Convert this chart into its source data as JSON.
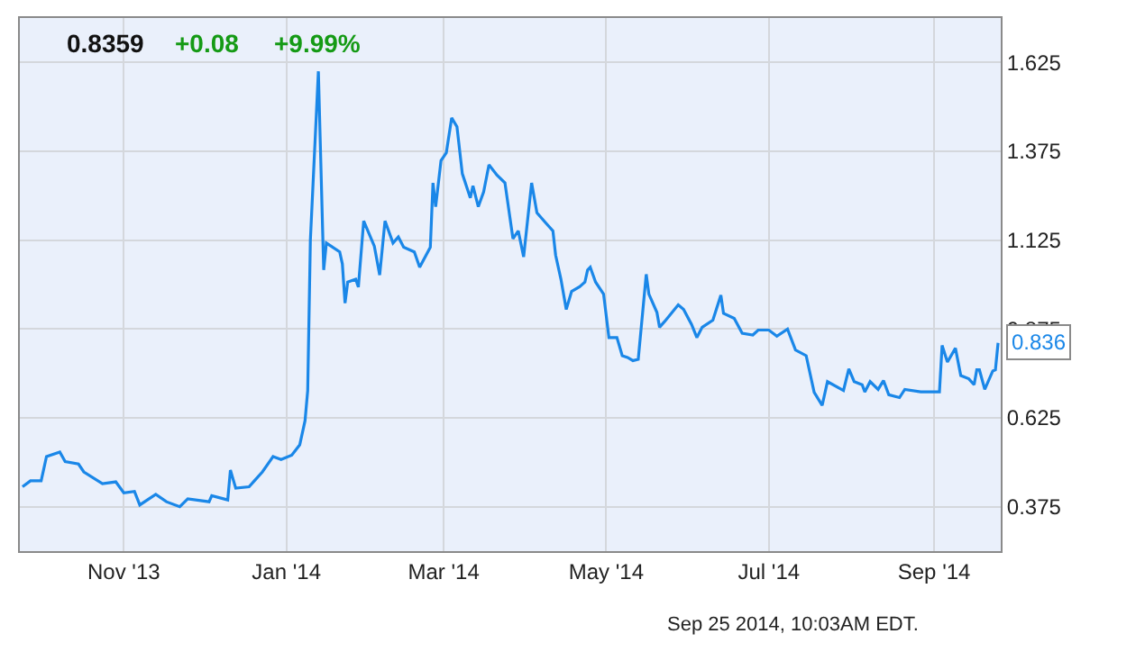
{
  "chart_data": {
    "type": "line",
    "annotations": [
      "0.8359",
      "+0.08",
      "+9.99%",
      "Sep 25 2014, 10:03AM EDT.",
      {
        "text": "0.836",
        "x": "2014-09-25",
        "y": 0.836
      }
    ],
    "x": [
      "2013-09-24",
      "2013-09-27",
      "2013-10-01",
      "2013-10-03",
      "2013-10-08",
      "2013-10-10",
      "2013-10-15",
      "2013-10-17",
      "2013-10-24",
      "2013-10-29",
      "2013-11-01",
      "2013-11-05",
      "2013-11-07",
      "2013-11-13",
      "2013-11-17",
      "2013-11-22",
      "2013-11-25",
      "2013-12-03",
      "2013-12-04",
      "2013-12-10",
      "2013-12-11",
      "2013-12-13",
      "2013-12-18",
      "2013-12-20",
      "2013-12-23",
      "2013-12-27",
      "2013-12-30",
      "2014-01-03",
      "2014-01-06",
      "2014-01-08",
      "2014-01-09",
      "2014-01-10",
      "2014-01-13",
      "2014-01-15",
      "2014-01-16",
      "2014-01-21",
      "2014-01-22",
      "2014-01-23",
      "2014-01-24",
      "2014-01-27",
      "2014-01-28",
      "2014-01-30",
      "2014-02-03",
      "2014-02-05",
      "2014-02-07",
      "2014-02-10",
      "2014-02-12",
      "2014-02-14",
      "2014-02-18",
      "2014-02-20",
      "2014-02-24",
      "2014-02-25",
      "2014-02-26",
      "2014-02-28",
      "2014-03-02",
      "2014-03-04",
      "2014-03-06",
      "2014-03-08",
      "2014-03-11",
      "2014-03-12",
      "2014-03-14",
      "2014-03-16",
      "2014-03-18",
      "2014-03-21",
      "2014-03-24",
      "2014-03-27",
      "2014-03-29",
      "2014-03-31",
      "2014-04-03",
      "2014-04-05",
      "2014-04-08",
      "2014-04-11",
      "2014-04-12",
      "2014-04-14",
      "2014-04-16",
      "2014-04-18",
      "2014-04-21",
      "2014-04-23",
      "2014-04-24",
      "2014-04-25",
      "2014-04-27",
      "2014-04-30",
      "2014-05-02",
      "2014-05-05",
      "2014-05-07",
      "2014-05-09",
      "2014-05-11",
      "2014-05-13",
      "2014-05-16",
      "2014-05-17",
      "2014-05-20",
      "2014-05-21",
      "2014-05-23",
      "2014-05-28",
      "2014-05-30",
      "2014-06-02",
      "2014-06-04",
      "2014-06-06",
      "2014-06-10",
      "2014-06-13",
      "2014-06-14",
      "2014-06-18",
      "2014-06-21",
      "2014-06-25",
      "2014-06-27",
      "2014-07-01",
      "2014-07-04",
      "2014-07-08",
      "2014-07-11",
      "2014-07-15",
      "2014-07-18",
      "2014-07-21",
      "2014-07-23",
      "2014-07-29",
      "2014-07-31",
      "2014-08-02",
      "2014-08-05",
      "2014-08-06",
      "2014-08-08",
      "2014-08-11",
      "2014-08-13",
      "2014-08-15",
      "2014-08-19",
      "2014-08-21",
      "2014-08-27",
      "2014-09-03",
      "2014-09-04",
      "2014-09-06",
      "2014-09-09",
      "2014-09-11",
      "2014-09-14",
      "2014-09-16",
      "2014-09-17",
      "2014-09-18",
      "2014-09-20",
      "2014-09-23",
      "2014-09-24",
      "2014-09-25"
    ],
    "series": [
      {
        "color": "#1a87e8",
        "values": [
          0.431,
          0.448,
          0.448,
          0.516,
          0.529,
          0.502,
          0.495,
          0.473,
          0.44,
          0.445,
          0.414,
          0.418,
          0.38,
          0.41,
          0.389,
          0.375,
          0.397,
          0.389,
          0.406,
          0.394,
          0.478,
          0.427,
          0.431,
          0.448,
          0.473,
          0.516,
          0.508,
          0.52,
          0.549,
          0.617,
          0.702,
          1.125,
          1.6,
          1.041,
          1.117,
          1.092,
          1.058,
          0.948,
          1.007,
          1.015,
          0.993,
          1.179,
          1.108,
          1.027,
          1.179,
          1.117,
          1.134,
          1.105,
          1.092,
          1.049,
          1.105,
          1.286,
          1.219,
          1.349,
          1.371,
          1.469,
          1.444,
          1.312,
          1.244,
          1.278,
          1.219,
          1.261,
          1.337,
          1.308,
          1.286,
          1.129,
          1.151,
          1.078,
          1.286,
          1.202,
          1.176,
          1.151,
          1.083,
          1.015,
          0.93,
          0.981,
          0.994,
          1.007,
          1.041,
          1.049,
          1.007,
          0.973,
          0.851,
          0.851,
          0.8,
          0.795,
          0.786,
          0.79,
          1.029,
          0.973,
          0.922,
          0.88,
          0.897,
          0.943,
          0.93,
          0.888,
          0.851,
          0.88,
          0.9,
          0.97,
          0.919,
          0.905,
          0.863,
          0.858,
          0.872,
          0.872,
          0.855,
          0.875,
          0.816,
          0.8,
          0.697,
          0.66,
          0.727,
          0.702,
          0.763,
          0.727,
          0.718,
          0.698,
          0.727,
          0.705,
          0.73,
          0.69,
          0.682,
          0.705,
          0.698,
          0.698,
          0.829,
          0.782,
          0.821,
          0.744,
          0.735,
          0.718,
          0.76,
          0.76,
          0.705,
          0.757,
          0.76,
          0.836
        ]
      }
    ],
    "xlim": [
      "2013-09-23",
      "2014-09-26"
    ],
    "xticks": [
      {
        "value": "2013-11-01",
        "label": "Nov '13"
      },
      {
        "value": "2014-01-01",
        "label": "Jan '14"
      },
      {
        "value": "2014-03-01",
        "label": "Mar '14"
      },
      {
        "value": "2014-05-01",
        "label": "May '14"
      },
      {
        "value": "2014-07-01",
        "label": "Jul '14"
      },
      {
        "value": "2014-09-01",
        "label": "Sep '14"
      }
    ],
    "ylim": [
      0.25,
      1.75
    ],
    "yticks": [
      0.375,
      0.625,
      0.875,
      1.125,
      1.375,
      1.625
    ],
    "grid": true,
    "marker": "none",
    "line_style": "solid"
  }
}
